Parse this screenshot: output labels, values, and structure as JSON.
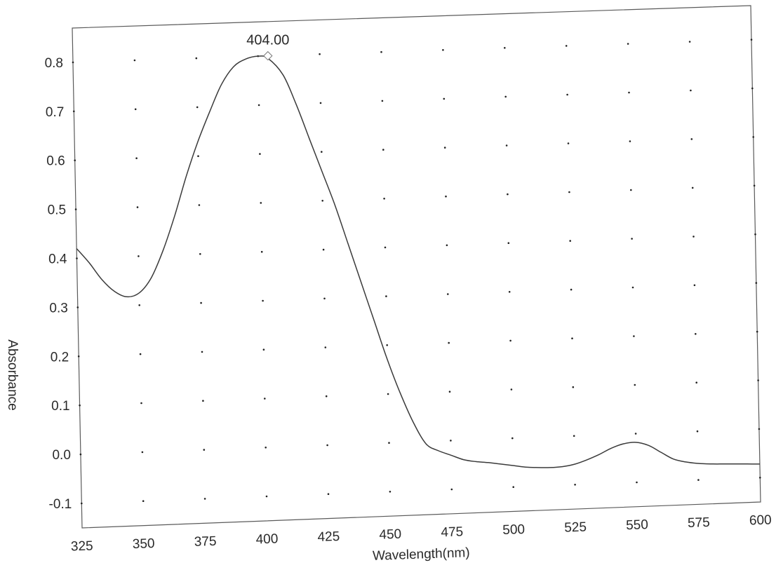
{
  "chart_data": {
    "type": "line",
    "xlabel": "Wavelength(nm)",
    "ylabel": "Absorbance",
    "xlim": [
      325,
      600
    ],
    "ylim": [
      -0.15,
      0.87
    ],
    "x_ticks": [
      325,
      350,
      375,
      400,
      425,
      450,
      475,
      500,
      525,
      550,
      575,
      600
    ],
    "x_tick_labels": [
      "325",
      "350",
      "375",
      "400",
      "425",
      "450",
      "475",
      "500",
      "525",
      "550",
      "575",
      "600"
    ],
    "y_ticks": [
      -0.1,
      0.0,
      0.1,
      0.2,
      0.3,
      0.4,
      0.5,
      0.6,
      0.7,
      0.8
    ],
    "y_tick_labels": [
      "-0.1",
      "0.0",
      "0.1",
      "0.2",
      "0.3",
      "0.4",
      "0.5",
      "0.6",
      "0.7",
      "0.8"
    ],
    "grid": "dotted",
    "series": [
      {
        "x": [
          325,
          330,
          335,
          340,
          345,
          350,
          355,
          360,
          365,
          370,
          375,
          380,
          385,
          390,
          395,
          400,
          404,
          410,
          415,
          420,
          425,
          430,
          435,
          440,
          445,
          450,
          455,
          460,
          465,
          470,
          475,
          480,
          485,
          490,
          495,
          500,
          505,
          510,
          515,
          520,
          525,
          530,
          535,
          540,
          545,
          550,
          555,
          560,
          565,
          570,
          575,
          580,
          585,
          590,
          595,
          600
        ],
        "y": [
          0.42,
          0.39,
          0.355,
          0.33,
          0.318,
          0.325,
          0.355,
          0.41,
          0.48,
          0.56,
          0.63,
          0.69,
          0.745,
          0.78,
          0.795,
          0.8,
          0.795,
          0.76,
          0.7,
          0.63,
          0.56,
          0.49,
          0.41,
          0.33,
          0.25,
          0.17,
          0.1,
          0.04,
          -0.005,
          -0.02,
          -0.03,
          -0.04,
          -0.045,
          -0.048,
          -0.052,
          -0.056,
          -0.06,
          -0.062,
          -0.063,
          -0.062,
          -0.058,
          -0.05,
          -0.04,
          -0.028,
          -0.02,
          -0.018,
          -0.025,
          -0.04,
          -0.055,
          -0.062,
          -0.066,
          -0.068,
          -0.069,
          -0.07,
          -0.071,
          -0.072
        ],
        "color": "#3a3a3a"
      }
    ],
    "annotations": [
      {
        "text": "404.00",
        "x": 404,
        "y": 0.8
      }
    ]
  }
}
